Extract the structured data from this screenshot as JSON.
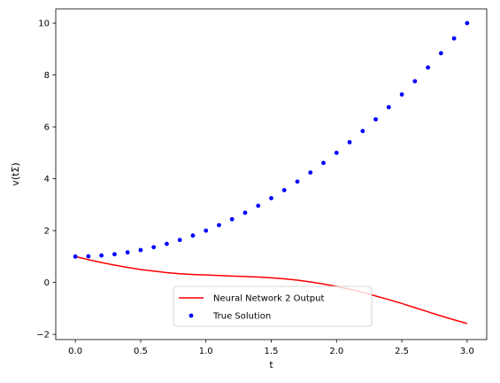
{
  "chart_data": {
    "type": "line",
    "title": "",
    "xlabel": "t",
    "ylabel": "v(tΣ)",
    "xlim": [
      -0.15,
      3.15
    ],
    "ylim": [
      -2.2,
      10.55
    ],
    "xticks": [
      0.0,
      0.5,
      1.0,
      1.5,
      2.0,
      2.5,
      3.0
    ],
    "xtick_labels": [
      "0.0",
      "0.5",
      "1.0",
      "1.5",
      "2.0",
      "2.5",
      "3.0"
    ],
    "yticks": [
      -2,
      0,
      2,
      4,
      6,
      8,
      10
    ],
    "ytick_labels": [
      "−2",
      "0",
      "2",
      "4",
      "6",
      "8",
      "10"
    ],
    "grid": false,
    "legend_position": "lower-center",
    "series": [
      {
        "name": "Neural Network 2 Output",
        "style": "line",
        "color": "#ff0000",
        "x": [
          0.0,
          0.1,
          0.2,
          0.3,
          0.4,
          0.5,
          0.6,
          0.7,
          0.8,
          0.9,
          1.0,
          1.1,
          1.2,
          1.3,
          1.4,
          1.5,
          1.6,
          1.7,
          1.8,
          1.9,
          2.0,
          2.1,
          2.2,
          2.3,
          2.4,
          2.5,
          2.6,
          2.7,
          2.8,
          2.9,
          3.0
        ],
        "y": [
          1.0,
          0.88,
          0.77,
          0.67,
          0.58,
          0.5,
          0.44,
          0.38,
          0.34,
          0.31,
          0.29,
          0.27,
          0.25,
          0.23,
          0.21,
          0.18,
          0.14,
          0.09,
          0.02,
          -0.06,
          -0.15,
          -0.26,
          -0.38,
          -0.52,
          -0.66,
          -0.81,
          -0.97,
          -1.13,
          -1.29,
          -1.44,
          -1.58
        ]
      },
      {
        "name": "True Solution",
        "style": "scatter",
        "color": "#0000ff",
        "x": [
          0.0,
          0.1,
          0.2,
          0.3,
          0.4,
          0.5,
          0.6,
          0.7,
          0.8,
          0.9,
          1.0,
          1.1,
          1.2,
          1.3,
          1.4,
          1.5,
          1.6,
          1.7,
          1.8,
          1.9,
          2.0,
          2.1,
          2.2,
          2.3,
          2.4,
          2.5,
          2.6,
          2.7,
          2.8,
          2.9,
          3.0
        ],
        "y": [
          1.0,
          1.01,
          1.04,
          1.09,
          1.16,
          1.25,
          1.36,
          1.49,
          1.64,
          1.81,
          2.0,
          2.21,
          2.44,
          2.69,
          2.96,
          3.25,
          3.56,
          3.89,
          4.24,
          4.61,
          5.0,
          5.41,
          5.84,
          6.29,
          6.76,
          7.25,
          7.76,
          8.29,
          8.84,
          9.41,
          10.0
        ]
      }
    ]
  }
}
